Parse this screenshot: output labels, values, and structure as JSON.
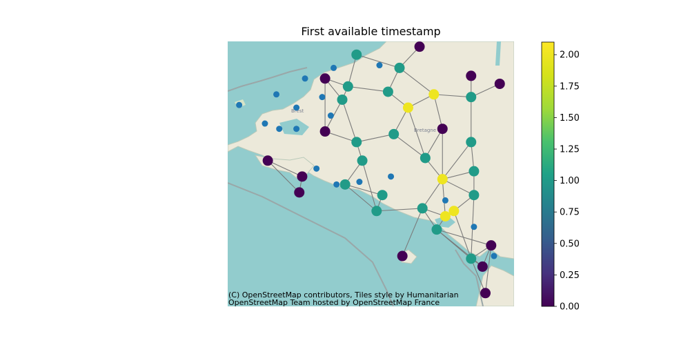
{
  "figure": {
    "title": "First available timestamp",
    "attribution_line1": "(C) OpenStreetMap contributors, Tiles style by Humanitarian",
    "attribution_line2": "OpenStreetMap Team hosted by OpenStreetMap France",
    "map_labels": {
      "brest": "Brest",
      "bretagne": "Bretagne"
    }
  },
  "colors": {
    "sea": "#92cccd",
    "land": "#ece9da",
    "edge": "#7a7a7a",
    "unconnected_node": "#1f77b4"
  },
  "colorbar": {
    "colormap": "viridis",
    "range": [
      0,
      2.1
    ],
    "ticks": [
      "0.00",
      "0.25",
      "0.50",
      "0.75",
      "1.00",
      "1.25",
      "1.50",
      "1.75",
      "2.00"
    ]
  },
  "chart_data": {
    "type": "network-map",
    "title": "First available timestamp",
    "color_variable_range": [
      0,
      2.1
    ],
    "nodes": [
      {
        "id": 0,
        "lon": 0.45,
        "lat": 0.95,
        "value": 1
      },
      {
        "id": 1,
        "lon": 0.67,
        "lat": 0.98,
        "value": 0
      },
      {
        "id": 2,
        "lon": 0.6,
        "lat": 0.9,
        "value": 1
      },
      {
        "id": 3,
        "lon": 0.34,
        "lat": 0.86,
        "value": 0
      },
      {
        "id": 4,
        "lon": 0.42,
        "lat": 0.83,
        "value": 1
      },
      {
        "id": 5,
        "lon": 0.4,
        "lat": 0.78,
        "value": 1
      },
      {
        "id": 6,
        "lon": 0.56,
        "lat": 0.81,
        "value": 1
      },
      {
        "id": 7,
        "lon": 0.72,
        "lat": 0.8,
        "value": 2
      },
      {
        "id": 8,
        "lon": 0.63,
        "lat": 0.75,
        "value": 2
      },
      {
        "id": 9,
        "lon": 0.85,
        "lat": 0.87,
        "value": 0
      },
      {
        "id": 10,
        "lon": 0.95,
        "lat": 0.84,
        "value": 0
      },
      {
        "id": 11,
        "lon": 0.85,
        "lat": 0.79,
        "value": 1
      },
      {
        "id": 12,
        "lon": 0.34,
        "lat": 0.66,
        "value": 0
      },
      {
        "id": 13,
        "lon": 0.45,
        "lat": 0.62,
        "value": 1
      },
      {
        "id": 14,
        "lon": 0.58,
        "lat": 0.65,
        "value": 1
      },
      {
        "id": 15,
        "lon": 0.75,
        "lat": 0.67,
        "value": 0
      },
      {
        "id": 16,
        "lon": 0.85,
        "lat": 0.62,
        "value": 1
      },
      {
        "id": 17,
        "lon": 0.69,
        "lat": 0.56,
        "value": 1
      },
      {
        "id": 18,
        "lon": 0.47,
        "lat": 0.55,
        "value": 1
      },
      {
        "id": 19,
        "lon": 0.14,
        "lat": 0.55,
        "value": 0
      },
      {
        "id": 20,
        "lon": 0.26,
        "lat": 0.49,
        "value": 0
      },
      {
        "id": 21,
        "lon": 0.25,
        "lat": 0.43,
        "value": 0
      },
      {
        "id": 22,
        "lon": 0.41,
        "lat": 0.46,
        "value": 1
      },
      {
        "id": 23,
        "lon": 0.54,
        "lat": 0.42,
        "value": 1
      },
      {
        "id": 24,
        "lon": 0.75,
        "lat": 0.48,
        "value": 2
      },
      {
        "id": 25,
        "lon": 0.86,
        "lat": 0.51,
        "value": 1
      },
      {
        "id": 26,
        "lon": 0.86,
        "lat": 0.42,
        "value": 1
      },
      {
        "id": 27,
        "lon": 0.52,
        "lat": 0.36,
        "value": 1
      },
      {
        "id": 28,
        "lon": 0.68,
        "lat": 0.37,
        "value": 1
      },
      {
        "id": 29,
        "lon": 0.76,
        "lat": 0.34,
        "value": 2
      },
      {
        "id": 30,
        "lon": 0.79,
        "lat": 0.36,
        "value": 2
      },
      {
        "id": 31,
        "lon": 0.73,
        "lat": 0.29,
        "value": 1
      },
      {
        "id": 32,
        "lon": 0.61,
        "lat": 0.19,
        "value": 0
      },
      {
        "id": 33,
        "lon": 0.92,
        "lat": 0.23,
        "value": 0
      },
      {
        "id": 34,
        "lon": 0.85,
        "lat": 0.18,
        "value": 1
      },
      {
        "id": 35,
        "lon": 0.89,
        "lat": 0.15,
        "value": 0
      },
      {
        "id": 36,
        "lon": 0.9,
        "lat": 0.05,
        "value": 0
      }
    ],
    "edges": [
      [
        0,
        2
      ],
      [
        0,
        4
      ],
      [
        1,
        2
      ],
      [
        2,
        6
      ],
      [
        2,
        7
      ],
      [
        3,
        4
      ],
      [
        3,
        5
      ],
      [
        3,
        12
      ],
      [
        4,
        6
      ],
      [
        4,
        5
      ],
      [
        5,
        12
      ],
      [
        5,
        13
      ],
      [
        6,
        8
      ],
      [
        7,
        8
      ],
      [
        7,
        11
      ],
      [
        7,
        15
      ],
      [
        8,
        14
      ],
      [
        8,
        17
      ],
      [
        9,
        11
      ],
      [
        10,
        11
      ],
      [
        11,
        16
      ],
      [
        12,
        13
      ],
      [
        13,
        14
      ],
      [
        13,
        18
      ],
      [
        14,
        17
      ],
      [
        15,
        17
      ],
      [
        15,
        24
      ],
      [
        16,
        25
      ],
      [
        16,
        24
      ],
      [
        17,
        24
      ],
      [
        18,
        22
      ],
      [
        18,
        27
      ],
      [
        19,
        20
      ],
      [
        19,
        21
      ],
      [
        20,
        21
      ],
      [
        22,
        27
      ],
      [
        22,
        23
      ],
      [
        23,
        27
      ],
      [
        24,
        25
      ],
      [
        24,
        26
      ],
      [
        24,
        28
      ],
      [
        24,
        29
      ],
      [
        25,
        26
      ],
      [
        26,
        30
      ],
      [
        26,
        34
      ],
      [
        27,
        28
      ],
      [
        28,
        29
      ],
      [
        28,
        31
      ],
      [
        28,
        32
      ],
      [
        29,
        30
      ],
      [
        29,
        31
      ],
      [
        30,
        34
      ],
      [
        31,
        34
      ],
      [
        33,
        34
      ],
      [
        33,
        35
      ],
      [
        33,
        36
      ],
      [
        34,
        35
      ],
      [
        34,
        36
      ],
      [
        31,
        33
      ],
      [
        31,
        35
      ]
    ],
    "unconnected_points": [
      {
        "lon": 0.04,
        "lat": 0.76
      },
      {
        "lon": 0.17,
        "lat": 0.8
      },
      {
        "lon": 0.27,
        "lat": 0.86
      },
      {
        "lon": 0.37,
        "lat": 0.9
      },
      {
        "lon": 0.53,
        "lat": 0.91
      },
      {
        "lon": 0.24,
        "lat": 0.75
      },
      {
        "lon": 0.33,
        "lat": 0.79
      },
      {
        "lon": 0.36,
        "lat": 0.72
      },
      {
        "lon": 0.13,
        "lat": 0.69
      },
      {
        "lon": 0.18,
        "lat": 0.67
      },
      {
        "lon": 0.24,
        "lat": 0.67
      },
      {
        "lon": 0.31,
        "lat": 0.52
      },
      {
        "lon": 0.38,
        "lat": 0.46
      },
      {
        "lon": 0.46,
        "lat": 0.47
      },
      {
        "lon": 0.57,
        "lat": 0.49
      },
      {
        "lon": 0.76,
        "lat": 0.4
      },
      {
        "lon": 0.86,
        "lat": 0.3
      },
      {
        "lon": 0.93,
        "lat": 0.19
      }
    ]
  }
}
